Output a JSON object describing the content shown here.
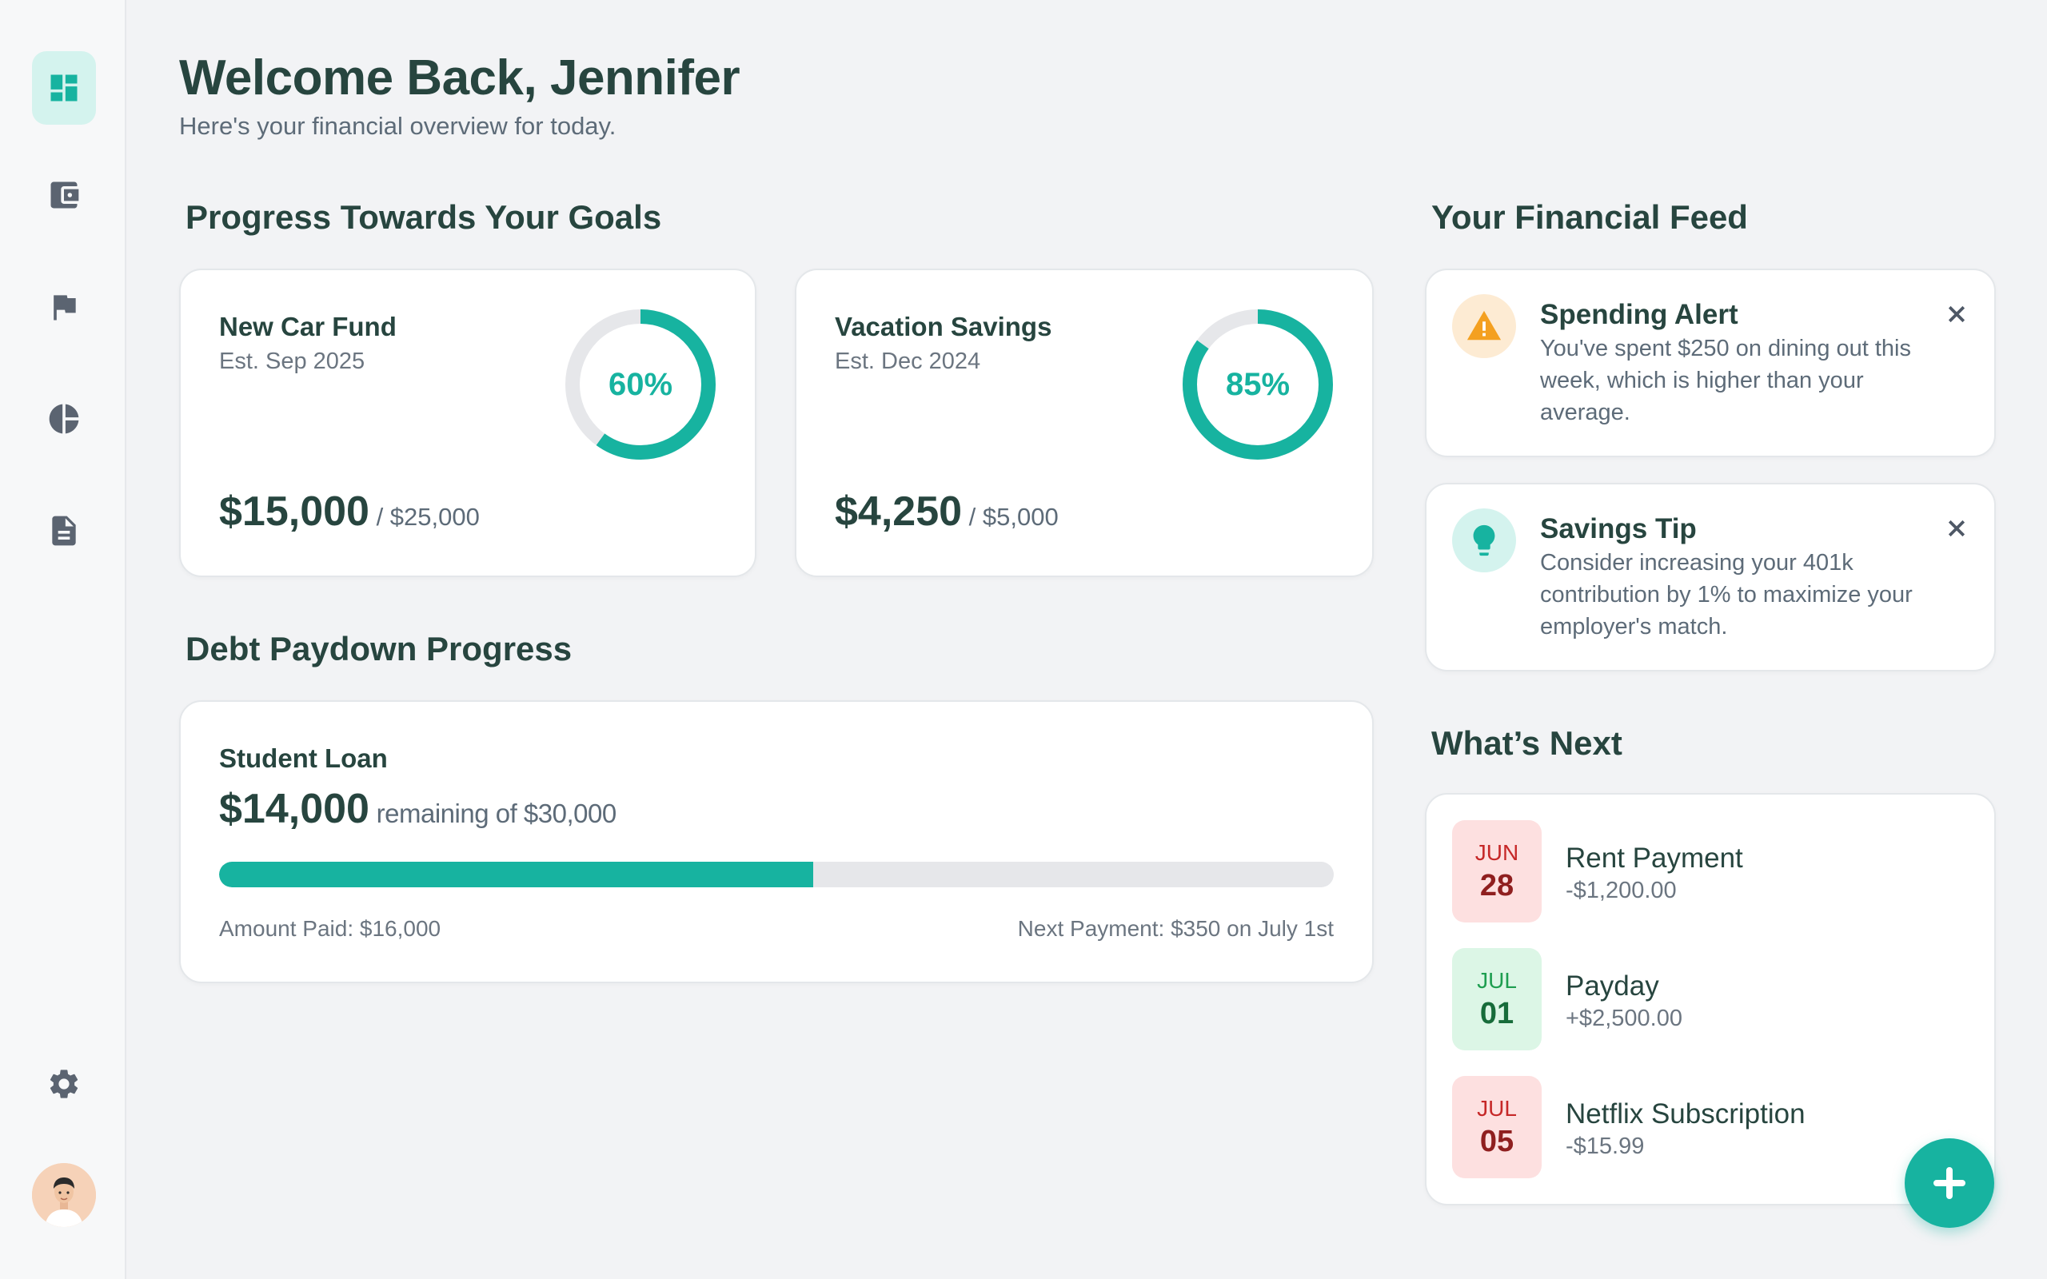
{
  "header": {
    "title": "Welcome Back, Jennifer",
    "subtitle": "Here's your financial overview for today."
  },
  "sidebar": {
    "items": [
      {
        "icon": "dashboard-icon",
        "active": true
      },
      {
        "icon": "wallet-icon",
        "active": false
      },
      {
        "icon": "flag-icon",
        "active": false
      },
      {
        "icon": "pie-chart-icon",
        "active": false
      },
      {
        "icon": "document-icon",
        "active": false
      }
    ],
    "settings_icon": "gear-icon",
    "avatar_icon": "user-avatar"
  },
  "goals": {
    "section_title": "Progress Towards Your Goals",
    "items": [
      {
        "name": "New Car Fund",
        "est": "Est. Sep 2025",
        "amount": "$15,000",
        "target": " / $25,000",
        "percent_label": "60%",
        "percent": 0.6
      },
      {
        "name": "Vacation Savings",
        "est": "Est. Dec 2024",
        "amount": "$4,250",
        "target": " / $5,000",
        "percent_label": "85%",
        "percent": 0.85
      }
    ]
  },
  "debt": {
    "section_title": "Debt Paydown Progress",
    "name": "Student Loan",
    "amount": "$14,000",
    "remaining": " remaining of $30,000",
    "paid_fraction": 0.5333,
    "paid_label": "Amount Paid: $16,000",
    "next_label": "Next Payment: $350 on July 1st"
  },
  "feed": {
    "section_title": "Your Financial Feed",
    "items": [
      {
        "icon": "warning-icon",
        "title": "Spending Alert",
        "text": "You've spent $250 on dining out this week, which is higher than your average.",
        "icon_bg": "#fdebd3",
        "icon_color": "#f4a020"
      },
      {
        "icon": "lightbulb-icon",
        "title": "Savings Tip",
        "text": "Consider increasing your 401k contribution by 1% to maximize your employer's match.",
        "icon_bg": "#d4f3ee",
        "icon_color": "#17b3a0"
      }
    ]
  },
  "upcoming": {
    "section_title": "What’s Next",
    "items": [
      {
        "month": "JUN",
        "day": "28",
        "title": "Rent Payment",
        "amount": "-$1,200.00",
        "bg": "#fde0e0",
        "fg": "#c62828",
        "day_fg": "#8f1f1f"
      },
      {
        "month": "JUL",
        "day": "01",
        "title": "Payday",
        "amount": "+$2,500.00",
        "bg": "#dcf6e6",
        "fg": "#1e9e50",
        "day_fg": "#176c3a"
      },
      {
        "month": "JUL",
        "day": "05",
        "title": "Netflix Subscription",
        "amount": "-$15.99",
        "bg": "#fde0e0",
        "fg": "#c62828",
        "day_fg": "#8f1f1f"
      }
    ]
  },
  "fab": {
    "icon": "plus-icon"
  },
  "colors": {
    "accent": "#17b3a0",
    "text": "#27453f",
    "muted": "#6b7580",
    "ring_track": "#e6e7ea"
  }
}
